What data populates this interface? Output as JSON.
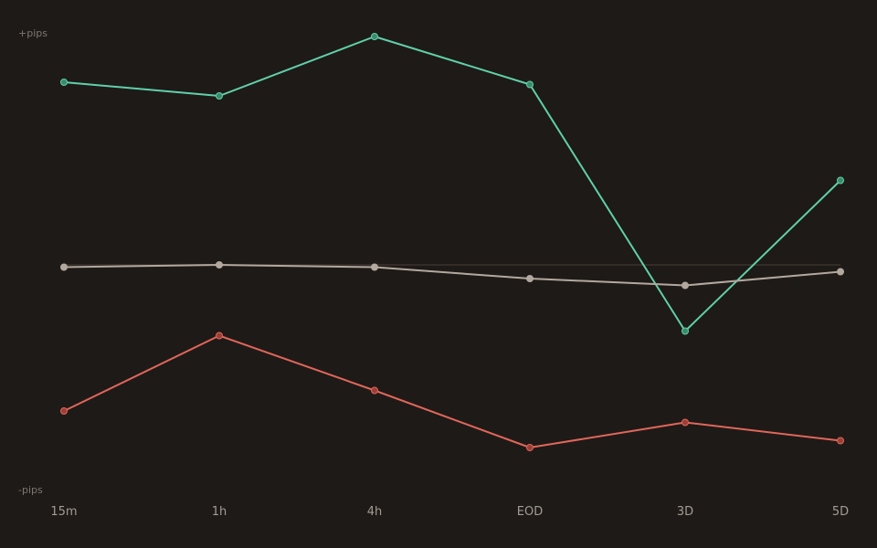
{
  "chart_data": {
    "type": "line",
    "title": "",
    "xlabel": "",
    "ylabel": "",
    "y_top_label": "+pips",
    "y_bottom_label": "-pips",
    "categories": [
      "15m",
      "1h",
      "4h",
      "EOD",
      "3D",
      "5D"
    ],
    "ylim": [
      -1.0,
      1.0
    ],
    "zero_line": true,
    "grid": false,
    "legend": "none",
    "series": [
      {
        "key": "green",
        "color": "#5fd0aa",
        "marker_color": "#3b8a6b",
        "values": [
          0.8,
          0.74,
          1.0,
          0.79,
          -0.29,
          0.37
        ]
      },
      {
        "key": "gray",
        "color": "#b3a89e",
        "marker_color": "#b3a89e",
        "values": [
          -0.01,
          0.0,
          -0.01,
          -0.06,
          -0.09,
          -0.03
        ]
      },
      {
        "key": "red",
        "color": "#e0665a",
        "marker_color": "#9a3f37",
        "values": [
          -0.64,
          -0.31,
          -0.55,
          -0.8,
          -0.69,
          -0.77
        ]
      }
    ]
  }
}
